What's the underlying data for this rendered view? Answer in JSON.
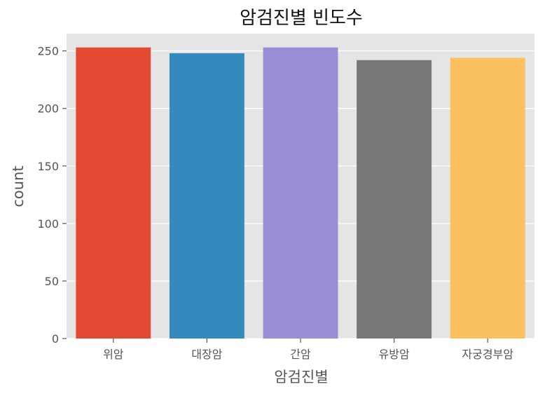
{
  "chart_data": {
    "type": "bar",
    "title": "암검진별 빈도수",
    "xlabel": "암검진별",
    "ylabel": "count",
    "categories": [
      "위암",
      "대장암",
      "간암",
      "유방암",
      "자궁경부암"
    ],
    "values": [
      253,
      248,
      253,
      242,
      244
    ],
    "colors": [
      "#E24A33",
      "#348ABD",
      "#988ED5",
      "#777777",
      "#FBC15E"
    ],
    "ylim": [
      0,
      265
    ],
    "yticks": [
      0,
      50,
      100,
      150,
      200,
      250
    ],
    "grid": true,
    "plot_background": "#E5E5E5",
    "grid_color": "#FFFFFF"
  }
}
